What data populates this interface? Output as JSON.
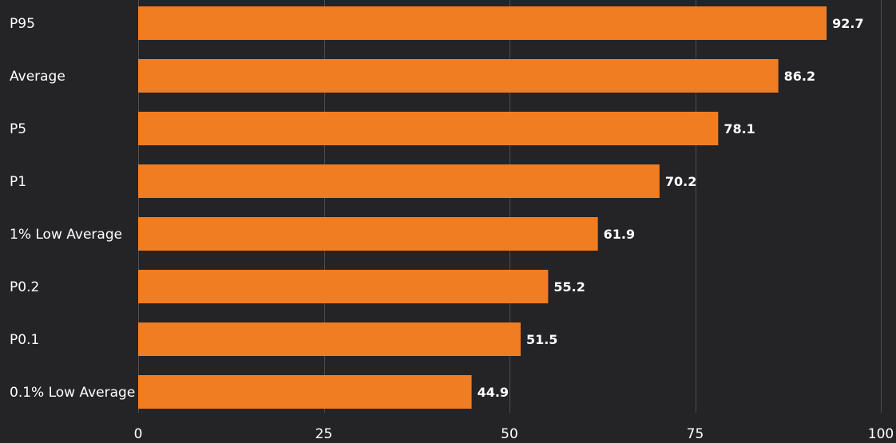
{
  "chart_data": {
    "type": "bar",
    "orientation": "horizontal",
    "title": "",
    "xlabel": "",
    "ylabel": "",
    "categories": [
      "P95",
      "Average",
      "P5",
      "P1",
      "1% Low Average",
      "P0.2",
      "P0.1",
      "0.1% Low Average"
    ],
    "values": [
      92.7,
      86.2,
      78.1,
      70.2,
      61.9,
      55.2,
      51.5,
      44.9
    ],
    "value_labels": [
      "92.7",
      "86.2",
      "78.1",
      "70.2",
      "61.9",
      "55.2",
      "51.5",
      "44.9"
    ],
    "xlim": [
      0,
      100
    ],
    "x_ticks": [
      0,
      25,
      50,
      75,
      100
    ],
    "x_tick_labels": [
      "0",
      "25",
      "50",
      "75",
      "100"
    ],
    "grid": true,
    "legend": "none",
    "colors": {
      "bar": "#f07d22",
      "background": "#242427",
      "grid": "#4d4d52",
      "text": "#ffffff"
    }
  }
}
